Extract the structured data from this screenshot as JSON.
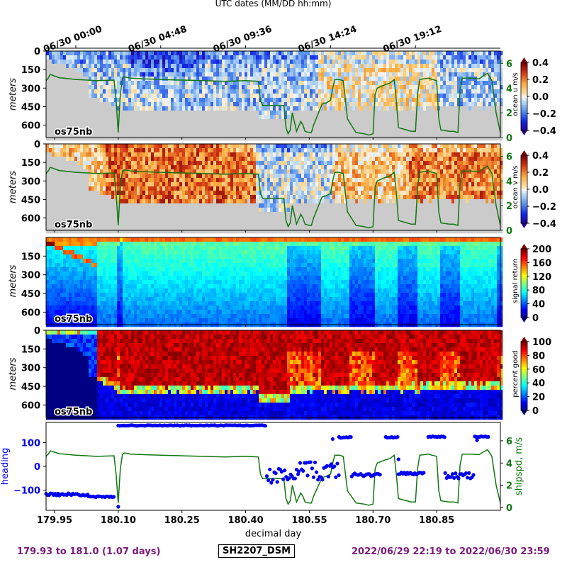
{
  "chart_data": [
    {
      "type": "heatmap",
      "panel_label": "os75nb",
      "ylabel": "meters",
      "yticks": [
        0,
        150,
        300,
        450,
        600
      ],
      "ylim": [
        700,
        0
      ],
      "colorbar": {
        "label": "ocean u m/s",
        "range": [
          -0.4,
          0.4
        ],
        "ticks": [
          "0.4",
          "0.2",
          "0.0",
          "−0.2",
          "−0.4"
        ]
      },
      "overlay": {
        "name": "shipspd",
        "color": "#117711",
        "right_ticks": [
          "0",
          "2",
          "4",
          "6"
        ],
        "range": [
          0,
          7
        ]
      },
      "top_axis_label": "UTC dates (MM/DD hh:mm)",
      "top_ticks": [
        "06/30 00:00",
        "06/30 04:48",
        "06/30 09:36",
        "06/30 14:24",
        "06/30 19:12"
      ]
    },
    {
      "type": "heatmap",
      "panel_label": "os75nb",
      "ylabel": "meters",
      "yticks": [
        0,
        150,
        300,
        450,
        600
      ],
      "ylim": [
        700,
        0
      ],
      "colorbar": {
        "label": "ocean v m/s",
        "range": [
          -0.4,
          0.4
        ],
        "ticks": [
          "0.4",
          "0.2",
          "0.0",
          "−0.2",
          "−0.4"
        ]
      },
      "overlay": {
        "name": "shipspd",
        "color": "#117711",
        "right_ticks": [
          "0",
          "2",
          "4",
          "6"
        ],
        "range": [
          0,
          7
        ]
      }
    },
    {
      "type": "heatmap",
      "panel_label": "os75nb",
      "ylabel": "meters",
      "yticks": [
        150,
        300,
        450,
        600
      ],
      "ylim": [
        700,
        0
      ],
      "colorbar": {
        "label": "signal return",
        "range": [
          0,
          200
        ],
        "ticks": [
          "200",
          "160",
          "120",
          "80",
          "40",
          "0"
        ]
      }
    },
    {
      "type": "heatmap",
      "panel_label": "os75nb",
      "ylabel": "meters",
      "yticks": [
        0,
        150,
        300,
        450,
        600
      ],
      "ylim": [
        700,
        0
      ],
      "colorbar": {
        "label": "percent good",
        "range": [
          0,
          100
        ],
        "ticks": [
          "100",
          "80",
          "60",
          "40",
          "20",
          "0"
        ]
      }
    },
    {
      "type": "line",
      "xlabel": "decimal day",
      "xlim": [
        179.93,
        181.0
      ],
      "xticks": [
        "179.95",
        "180.10",
        "180.25",
        "180.40",
        "180.55",
        "180.70",
        "180.85"
      ],
      "left_axis": {
        "label": "heading",
        "color": "#0000ee",
        "ticks": [
          "100",
          "0",
          "−100"
        ],
        "range": [
          -185,
          185
        ]
      },
      "right_axis": {
        "label": "shipspd, m/s",
        "color": "#117711",
        "ticks": [
          "0",
          "2",
          "4",
          "6"
        ],
        "range": [
          0,
          7.4
        ]
      },
      "series": [
        {
          "name": "heading",
          "color": "#0000ee",
          "style": "dots",
          "segments": [
            {
              "x0": 179.93,
              "x1": 180.03,
              "y": -118,
              "jitter": 10
            },
            {
              "x0": 180.03,
              "x1": 180.09,
              "y": -128,
              "jitter": 4
            },
            {
              "x0": 180.1,
              "x1": 180.45,
              "y": 172,
              "jitter": 3
            },
            {
              "x0": 180.45,
              "x1": 180.525,
              "y": -40,
              "jitter": 60
            },
            {
              "x0": 180.525,
              "x1": 180.62,
              "y": -20,
              "jitter": 80
            },
            {
              "x0": 180.62,
              "x1": 180.65,
              "y": 122,
              "jitter": 4
            },
            {
              "x0": 180.65,
              "x1": 180.72,
              "y": -35,
              "jitter": 15
            },
            {
              "x0": 180.73,
              "x1": 180.76,
              "y": 122,
              "jitter": 4
            },
            {
              "x0": 180.76,
              "x1": 180.82,
              "y": -30,
              "jitter": 10
            },
            {
              "x0": 180.83,
              "x1": 180.87,
              "y": 125,
              "jitter": 4
            },
            {
              "x0": 180.87,
              "x1": 180.94,
              "y": -40,
              "jitter": 25
            },
            {
              "x0": 180.94,
              "x1": 180.975,
              "y": 125,
              "jitter": 4
            }
          ],
          "isolated": [
            [
              180.1,
              -170
            ],
            [
              180.605,
              115
            ],
            [
              180.76,
              30
            ],
            [
              180.945,
              110
            ]
          ]
        },
        {
          "name": "shipspd",
          "color": "#117711",
          "style": "line",
          "x": [
            179.93,
            179.935,
            179.94,
            179.96,
            180.0,
            180.05,
            180.09,
            180.095,
            180.1,
            180.105,
            180.11,
            180.115,
            180.13,
            180.16,
            180.2,
            180.25,
            180.3,
            180.35,
            180.4,
            180.43,
            180.435,
            180.44,
            180.47,
            180.49,
            180.495,
            180.5,
            180.505,
            180.51,
            180.52,
            180.53,
            180.535,
            180.54,
            180.55,
            180.555,
            180.56,
            180.58,
            180.59,
            180.6,
            180.605,
            180.61,
            180.62,
            180.63,
            180.64,
            180.66,
            180.68,
            180.69,
            180.7,
            180.705,
            180.71,
            180.73,
            180.74,
            180.75,
            180.755,
            180.76,
            180.78,
            180.79,
            180.8,
            180.805,
            180.81,
            180.83,
            180.84,
            180.85,
            180.855,
            180.86,
            180.88,
            180.89,
            180.9,
            180.905,
            180.91,
            180.93,
            180.95,
            180.96,
            180.97,
            180.98,
            180.99,
            181.0
          ],
          "y": [
            4.6,
            4.8,
            5.1,
            4.85,
            4.7,
            4.6,
            4.65,
            3.0,
            0.4,
            3.5,
            4.8,
            4.9,
            4.8,
            4.75,
            4.7,
            4.65,
            4.6,
            4.55,
            4.6,
            4.55,
            3.0,
            2.6,
            2.6,
            2.6,
            0.8,
            0.3,
            0.6,
            2.0,
            0.5,
            1.3,
            1.0,
            0.5,
            0.4,
            0.4,
            1.0,
            2.7,
            2.8,
            3.0,
            4.0,
            4.7,
            4.7,
            4.6,
            1.5,
            0.4,
            0.3,
            0.2,
            0.3,
            3.5,
            4.0,
            4.3,
            4.4,
            4.7,
            3.0,
            0.8,
            0.6,
            0.5,
            0.5,
            3.5,
            4.7,
            4.8,
            4.7,
            4.6,
            1.5,
            0.6,
            0.5,
            0.5,
            0.4,
            3.8,
            4.8,
            4.8,
            4.75,
            5.0,
            5.2,
            4.6,
            2.0,
            0.4
          ]
        }
      ]
    }
  ],
  "footer": {
    "left": "179.93 to 181.0 (1.07 days)",
    "center": "SH2207_DSM",
    "right": "2022/06/29 22:19 to 2022/06/30 23:59",
    "left_color": "#7a1a7a",
    "right_color": "#7a1a7a"
  }
}
